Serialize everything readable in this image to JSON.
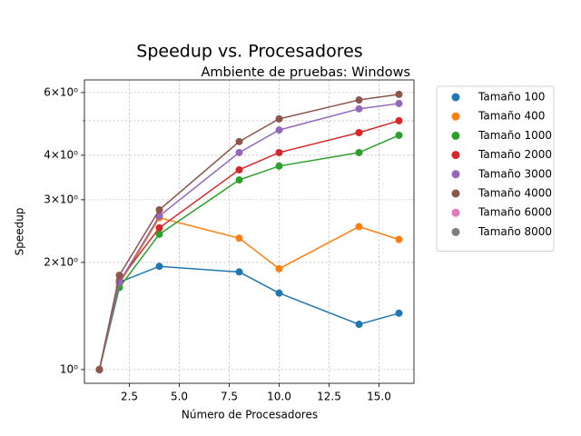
{
  "chart_data": {
    "type": "line",
    "title": "Speedup vs. Procesadores",
    "subtitle": "Ambiente de pruebas: Windows",
    "xlabel": "Número de Procesadores",
    "ylabel": "Speedup",
    "x": [
      1,
      2,
      4,
      8,
      10,
      14,
      16
    ],
    "series": [
      {
        "name": "Tamaño 100",
        "color": "#1f77b4",
        "values": [
          1,
          1.76,
          1.95,
          1.88,
          1.64,
          1.34,
          1.44
        ]
      },
      {
        "name": "Tamaño 400",
        "color": "#ff7f0e",
        "values": [
          1,
          1.74,
          2.67,
          2.34,
          1.92,
          2.52,
          2.32
        ]
      },
      {
        "name": "Tamaño 1000",
        "color": "#2ca02c",
        "values": [
          1,
          1.7,
          2.4,
          3.41,
          3.73,
          4.07,
          4.55
        ]
      },
      {
        "name": "Tamaño 2000",
        "color": "#d62728",
        "values": [
          1,
          1.78,
          2.5,
          3.64,
          4.07,
          4.63,
          5.0
        ]
      },
      {
        "name": "Tamaño 3000",
        "color": "#9467bd",
        "values": [
          1,
          1.76,
          2.7,
          4.07,
          4.71,
          5.4,
          5.59
        ]
      },
      {
        "name": "Tamaño 4000",
        "color": "#8c564b",
        "values": [
          1,
          1.84,
          2.81,
          4.37,
          5.06,
          5.72,
          5.93
        ]
      },
      {
        "name": "Tamaño 6000",
        "color": "#e377c2",
        "values": [
          null,
          null,
          null,
          null,
          null,
          null,
          null
        ]
      },
      {
        "name": "Tamaño 8000",
        "color": "#7f7f7f",
        "values": [
          null,
          null,
          null,
          null,
          null,
          null,
          null
        ]
      }
    ],
    "xlim": [
      0.25,
      16.75
    ],
    "xticks": [
      2.5,
      {
        "value": 5,
        "label": "5.0"
      },
      7.5,
      {
        "value": 10,
        "label": "10.0"
      },
      12.5,
      {
        "value": 15,
        "label": "15.0"
      }
    ],
    "ylim": [
      0.915,
      6.51
    ],
    "ylog": true,
    "yticks": [
      {
        "value": 1,
        "label": "10⁰"
      },
      {
        "value": 2,
        "label": "2×10⁰"
      },
      {
        "value": 3,
        "label": "3×10⁰"
      },
      {
        "value": 4,
        "label": "4×10⁰"
      },
      {
        "value": 6,
        "label": "6×10⁰"
      }
    ],
    "yminor_ticks": [
      5
    ],
    "grid": true,
    "legend": "outside-right"
  }
}
